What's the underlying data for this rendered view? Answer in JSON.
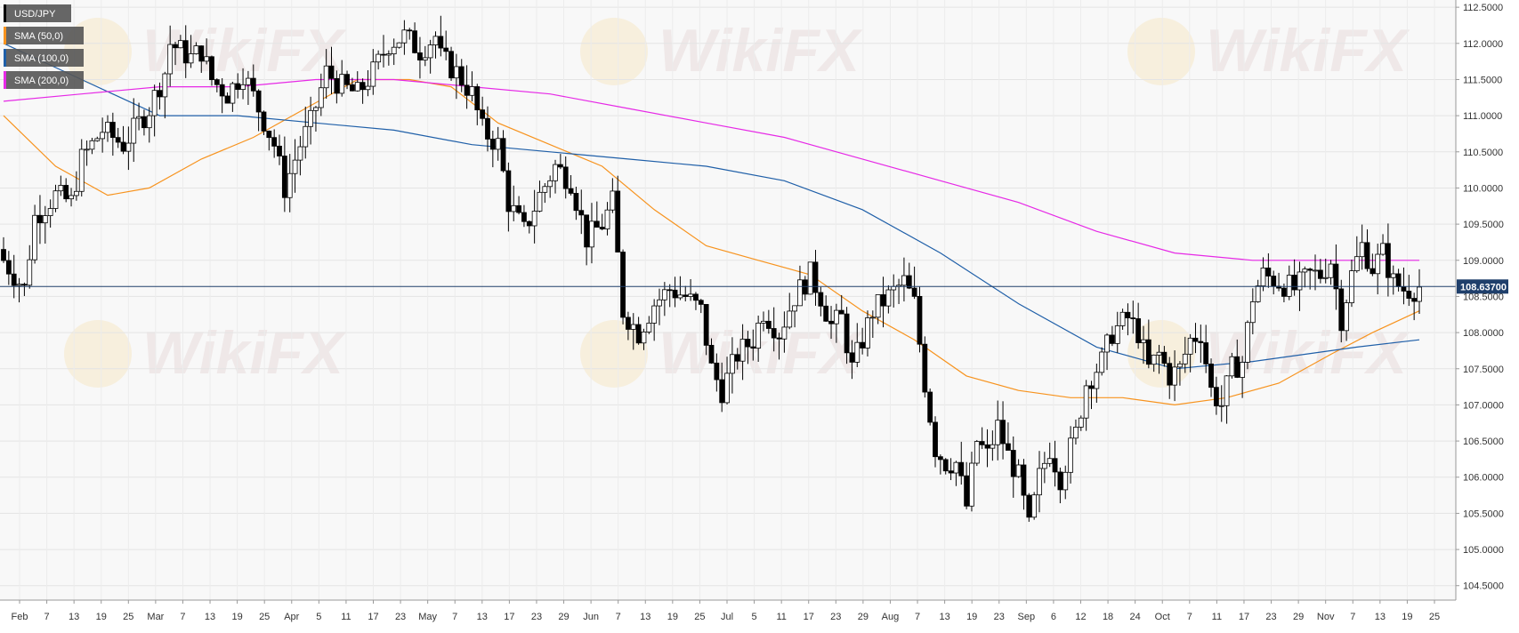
{
  "chart_data": {
    "type": "candlestick",
    "symbol": "USD/JPY",
    "ylim": [
      104.3,
      112.6
    ],
    "y_ticks": [
      "112.5000",
      "112.0000",
      "111.5000",
      "111.0000",
      "110.5000",
      "110.0000",
      "109.5000",
      "109.0000",
      "108.5000",
      "108.0000",
      "107.5000",
      "107.0000",
      "106.5000",
      "106.0000",
      "105.5000",
      "105.0000",
      "104.5000"
    ],
    "x_ticks": [
      "Feb",
      "7",
      "13",
      "19",
      "25",
      "Mar",
      "7",
      "13",
      "19",
      "25",
      "Apr",
      "5",
      "11",
      "17",
      "23",
      "May",
      "7",
      "13",
      "17",
      "23",
      "29",
      "Jun",
      "7",
      "13",
      "19",
      "25",
      "Jul",
      "5",
      "11",
      "17",
      "23",
      "29",
      "Aug",
      "7",
      "13",
      "19",
      "23",
      "Sep",
      "6",
      "12",
      "18",
      "24",
      "Oct",
      "7",
      "11",
      "17",
      "23",
      "29",
      "Nov",
      "7",
      "13",
      "19",
      "25"
    ],
    "current_price": 108.637,
    "current_price_label": "108.63700",
    "legend": [
      {
        "label": "USD/JPY",
        "color": "#000000"
      },
      {
        "label": "SMA (50,0)",
        "color": "#f7931e"
      },
      {
        "label": "SMA (100,0)",
        "color": "#1f5fa8"
      },
      {
        "label": "SMA (200,0)",
        "color": "#e629e6"
      }
    ],
    "watermark": "WikiFX",
    "close_path": [
      [
        0,
        109.0
      ],
      [
        4,
        108.6
      ],
      [
        6,
        109.6
      ],
      [
        10,
        109.9
      ],
      [
        13,
        109.8
      ],
      [
        15,
        110.4
      ],
      [
        19,
        110.8
      ],
      [
        23,
        110.6
      ],
      [
        28,
        111.1
      ],
      [
        31,
        111.6
      ],
      [
        32,
        112.0
      ],
      [
        36,
        111.8
      ],
      [
        38,
        111.9
      ],
      [
        40,
        111.5
      ],
      [
        43,
        111.3
      ],
      [
        46,
        111.6
      ],
      [
        49,
        111.1
      ],
      [
        52,
        110.6
      ],
      [
        54,
        110.0
      ],
      [
        57,
        110.6
      ],
      [
        59,
        110.9
      ],
      [
        62,
        111.6
      ],
      [
        65,
        111.4
      ],
      [
        68,
        111.3
      ],
      [
        71,
        111.6
      ],
      [
        74,
        112.0
      ],
      [
        77,
        112.1
      ],
      [
        80,
        111.9
      ],
      [
        83,
        112.1
      ],
      [
        84,
        111.8
      ],
      [
        87,
        111.6
      ],
      [
        90,
        111.3
      ],
      [
        92,
        110.8
      ],
      [
        95,
        110.6
      ],
      [
        97,
        109.8
      ],
      [
        100,
        109.4
      ],
      [
        103,
        109.9
      ],
      [
        106,
        110.3
      ],
      [
        109,
        110.1
      ],
      [
        112,
        109.3
      ],
      [
        115,
        109.5
      ],
      [
        117,
        109.8
      ],
      [
        119,
        108.3
      ],
      [
        122,
        108.0
      ],
      [
        125,
        108.4
      ],
      [
        128,
        108.6
      ],
      [
        131,
        108.5
      ],
      [
        134,
        108.3
      ],
      [
        136,
        107.5
      ],
      [
        138,
        107.2
      ],
      [
        141,
        107.7
      ],
      [
        144,
        107.9
      ],
      [
        146,
        108.3
      ],
      [
        149,
        108.0
      ],
      [
        152,
        108.5
      ],
      [
        155,
        108.8
      ],
      [
        157,
        108.5
      ],
      [
        159,
        108.1
      ],
      [
        161,
        108.2
      ],
      [
        163,
        107.5
      ],
      [
        165,
        107.9
      ],
      [
        167,
        108.3
      ],
      [
        170,
        108.5
      ],
      [
        173,
        108.7
      ],
      [
        175,
        108.4
      ],
      [
        177,
        107.3
      ],
      [
        179,
        106.4
      ],
      [
        181,
        106.2
      ],
      [
        183,
        106.2
      ],
      [
        185,
        105.6
      ],
      [
        187,
        106.5
      ],
      [
        189,
        106.3
      ],
      [
        191,
        106.7
      ],
      [
        193,
        106.3
      ],
      [
        195,
        106.0
      ],
      [
        197,
        105.3
      ],
      [
        199,
        106.0
      ],
      [
        201,
        106.4
      ],
      [
        203,
        106.0
      ],
      [
        206,
        106.6
      ],
      [
        208,
        107.3
      ],
      [
        211,
        107.6
      ],
      [
        213,
        108.0
      ],
      [
        216,
        108.2
      ],
      [
        218,
        108.0
      ],
      [
        220,
        107.5
      ],
      [
        222,
        107.7
      ],
      [
        224,
        107.4
      ],
      [
        226,
        107.5
      ],
      [
        228,
        107.9
      ],
      [
        230,
        108.0
      ],
      [
        232,
        107.2
      ],
      [
        234,
        107.0
      ],
      [
        236,
        107.5
      ],
      [
        238,
        107.6
      ],
      [
        240,
        108.5
      ],
      [
        242,
        108.8
      ],
      [
        245,
        108.7
      ],
      [
        248,
        108.6
      ],
      [
        251,
        108.8
      ],
      [
        253,
        108.8
      ],
      [
        255,
        109.0
      ],
      [
        257,
        108.2
      ],
      [
        259,
        108.8
      ],
      [
        261,
        109.2
      ],
      [
        263,
        108.9
      ],
      [
        265,
        109.1
      ],
      [
        267,
        108.7
      ],
      [
        269,
        108.6
      ],
      [
        271,
        108.6
      ],
      [
        272,
        108.637
      ]
    ],
    "sma50_path": [
      [
        0,
        111.0
      ],
      [
        10,
        110.3
      ],
      [
        20,
        109.9
      ],
      [
        28,
        110.0
      ],
      [
        38,
        110.4
      ],
      [
        48,
        110.7
      ],
      [
        58,
        111.1
      ],
      [
        68,
        111.5
      ],
      [
        78,
        111.5
      ],
      [
        86,
        111.4
      ],
      [
        95,
        110.9
      ],
      [
        105,
        110.6
      ],
      [
        115,
        110.3
      ],
      [
        125,
        109.7
      ],
      [
        135,
        109.2
      ],
      [
        145,
        109.0
      ],
      [
        155,
        108.8
      ],
      [
        165,
        108.3
      ],
      [
        175,
        107.9
      ],
      [
        185,
        107.4
      ],
      [
        195,
        107.2
      ],
      [
        205,
        107.1
      ],
      [
        215,
        107.1
      ],
      [
        225,
        107.0
      ],
      [
        235,
        107.1
      ],
      [
        245,
        107.3
      ],
      [
        255,
        107.7
      ],
      [
        263,
        108.0
      ],
      [
        272,
        108.3
      ]
    ],
    "sma100_path": [
      [
        0,
        112.0
      ],
      [
        15,
        111.5
      ],
      [
        30,
        111.0
      ],
      [
        45,
        111.0
      ],
      [
        60,
        110.9
      ],
      [
        75,
        110.8
      ],
      [
        90,
        110.6
      ],
      [
        105,
        110.5
      ],
      [
        120,
        110.4
      ],
      [
        135,
        110.3
      ],
      [
        150,
        110.1
      ],
      [
        165,
        109.7
      ],
      [
        180,
        109.1
      ],
      [
        195,
        108.4
      ],
      [
        210,
        107.8
      ],
      [
        225,
        107.5
      ],
      [
        240,
        107.6
      ],
      [
        250,
        107.7
      ],
      [
        260,
        107.8
      ],
      [
        272,
        107.9
      ]
    ],
    "sma200_path": [
      [
        0,
        111.2
      ],
      [
        15,
        111.3
      ],
      [
        30,
        111.4
      ],
      [
        45,
        111.4
      ],
      [
        60,
        111.5
      ],
      [
        75,
        111.5
      ],
      [
        90,
        111.4
      ],
      [
        105,
        111.3
      ],
      [
        120,
        111.1
      ],
      [
        135,
        110.9
      ],
      [
        150,
        110.7
      ],
      [
        165,
        110.4
      ],
      [
        180,
        110.1
      ],
      [
        195,
        109.8
      ],
      [
        210,
        109.4
      ],
      [
        225,
        109.1
      ],
      [
        240,
        109.0
      ],
      [
        255,
        109.0
      ],
      [
        272,
        109.0
      ]
    ]
  }
}
